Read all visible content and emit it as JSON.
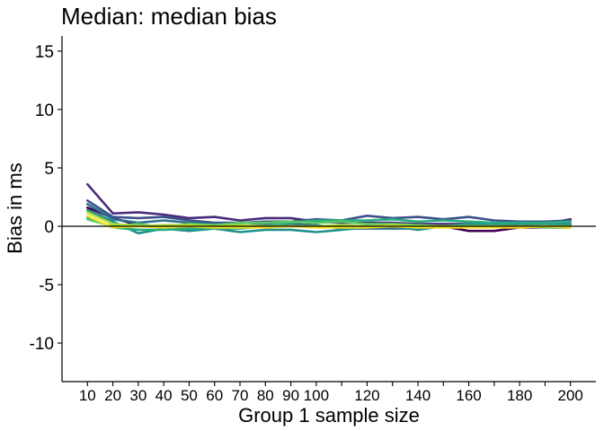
{
  "chart_data": {
    "type": "line",
    "title": "Median: median bias",
    "xlabel": "Group 1 sample size",
    "ylabel": "Bias in ms",
    "x": [
      10,
      20,
      30,
      40,
      50,
      60,
      70,
      80,
      90,
      100,
      110,
      120,
      130,
      140,
      150,
      160,
      170,
      180,
      190,
      200
    ],
    "x_tick_labels": [
      "10",
      "20",
      "30",
      "40",
      "50",
      "60",
      "70",
      "80",
      "90",
      "100",
      "120",
      "140",
      "160",
      "180",
      "200"
    ],
    "x_tick_values": [
      10,
      20,
      30,
      40,
      50,
      60,
      70,
      80,
      90,
      100,
      120,
      140,
      160,
      180,
      200
    ],
    "x_minor_ticks": [
      110,
      130,
      150,
      170,
      190
    ],
    "xlim": [
      0,
      210
    ],
    "y_tick_labels": [
      "15",
      "10",
      "5",
      "0",
      "-5",
      "-10"
    ],
    "y_tick_values": [
      15,
      10,
      5,
      0,
      -5,
      -10
    ],
    "ylim": [
      -13.3,
      16.3
    ],
    "reference_line": 0,
    "grid": false,
    "legend": "none",
    "series": [
      {
        "color": "#440154",
        "values": [
          1.6,
          0.7,
          0.1,
          0.0,
          -0.1,
          0.0,
          -0.1,
          0.0,
          0.1,
          0.0,
          -0.1,
          0.0,
          0.1,
          0.0,
          0.0,
          -0.4,
          -0.4,
          -0.1,
          -0.1,
          -0.1
        ]
      },
      {
        "color": "#472c7a",
        "values": [
          3.6,
          1.1,
          1.2,
          1.0,
          0.7,
          0.8,
          0.5,
          0.7,
          0.7,
          0.4,
          0.3,
          0.3,
          0.3,
          0.2,
          0.2,
          0.2,
          0.1,
          0.2,
          0.2,
          0.6
        ]
      },
      {
        "color": "#3b518b",
        "values": [
          2.2,
          0.8,
          0.7,
          0.8,
          0.5,
          0.3,
          0.3,
          0.4,
          0.4,
          0.6,
          0.5,
          0.9,
          0.7,
          0.8,
          0.6,
          0.8,
          0.5,
          0.4,
          0.4,
          0.5
        ]
      },
      {
        "color": "#2c718e",
        "values": [
          1.9,
          0.6,
          0.3,
          0.5,
          0.3,
          0.2,
          0.0,
          0.2,
          0.2,
          0.1,
          -0.2,
          -0.2,
          -0.2,
          -0.2,
          0.0,
          0.1,
          0.2,
          0.2,
          0.1,
          0.2
        ]
      },
      {
        "color": "#21908d",
        "values": [
          1.4,
          0.4,
          -0.6,
          -0.2,
          -0.4,
          -0.2,
          -0.5,
          -0.3,
          -0.3,
          -0.5,
          -0.3,
          -0.1,
          0.0,
          -0.3,
          0.0,
          0.2,
          0.2,
          0.3,
          0.2,
          0.1
        ]
      },
      {
        "color": "#27ad81",
        "values": [
          0.8,
          -0.1,
          -0.3,
          -0.3,
          -0.2,
          -0.2,
          -0.2,
          0.0,
          0.3,
          0.5,
          0.5,
          0.5,
          0.6,
          0.4,
          0.5,
          0.4,
          0.3,
          0.3,
          0.3,
          0.4
        ]
      },
      {
        "color": "#5cc863",
        "values": [
          0.6,
          0.0,
          0.2,
          -0.1,
          0.2,
          0.1,
          0.3,
          0.3,
          0.4,
          0.3,
          0.4,
          0.2,
          0.2,
          0.1,
          0.0,
          0.0,
          0.0,
          0.0,
          -0.1,
          -0.1
        ]
      },
      {
        "color": "#aadc32",
        "values": [
          1.2,
          0.2,
          0.0,
          0.1,
          0.1,
          0.0,
          0.1,
          0.0,
          0.0,
          0.0,
          0.1,
          0.0,
          0.1,
          0.0,
          0.0,
          0.0,
          0.0,
          0.0,
          0.0,
          0.0
        ]
      },
      {
        "color": "#fde725",
        "values": [
          0.9,
          -0.1,
          0.0,
          -0.1,
          0.0,
          -0.1,
          -0.1,
          -0.1,
          0.0,
          -0.1,
          -0.1,
          -0.1,
          0.0,
          -0.1,
          -0.1,
          -0.1,
          -0.1,
          -0.1,
          0.0,
          -0.1
        ]
      }
    ]
  }
}
